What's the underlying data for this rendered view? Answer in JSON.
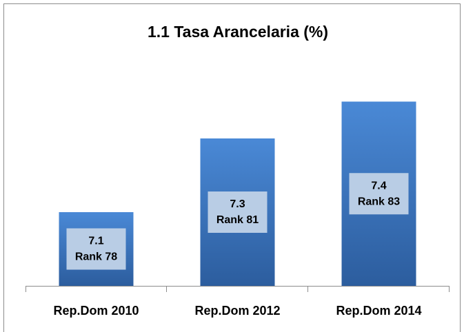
{
  "chart_data": {
    "type": "bar",
    "title": "1.1 Tasa Arancelaria (%)",
    "categories": [
      "Rep.Dom 2010",
      "Rep.Dom 2012",
      "Rep.Dom 2014"
    ],
    "values": [
      7.1,
      7.3,
      7.4
    ],
    "rank_labels": [
      "Rank 78",
      "Rank 81",
      "Rank 83"
    ],
    "color": "#3b74bd",
    "ylim": [
      6.9,
      7.5
    ]
  }
}
